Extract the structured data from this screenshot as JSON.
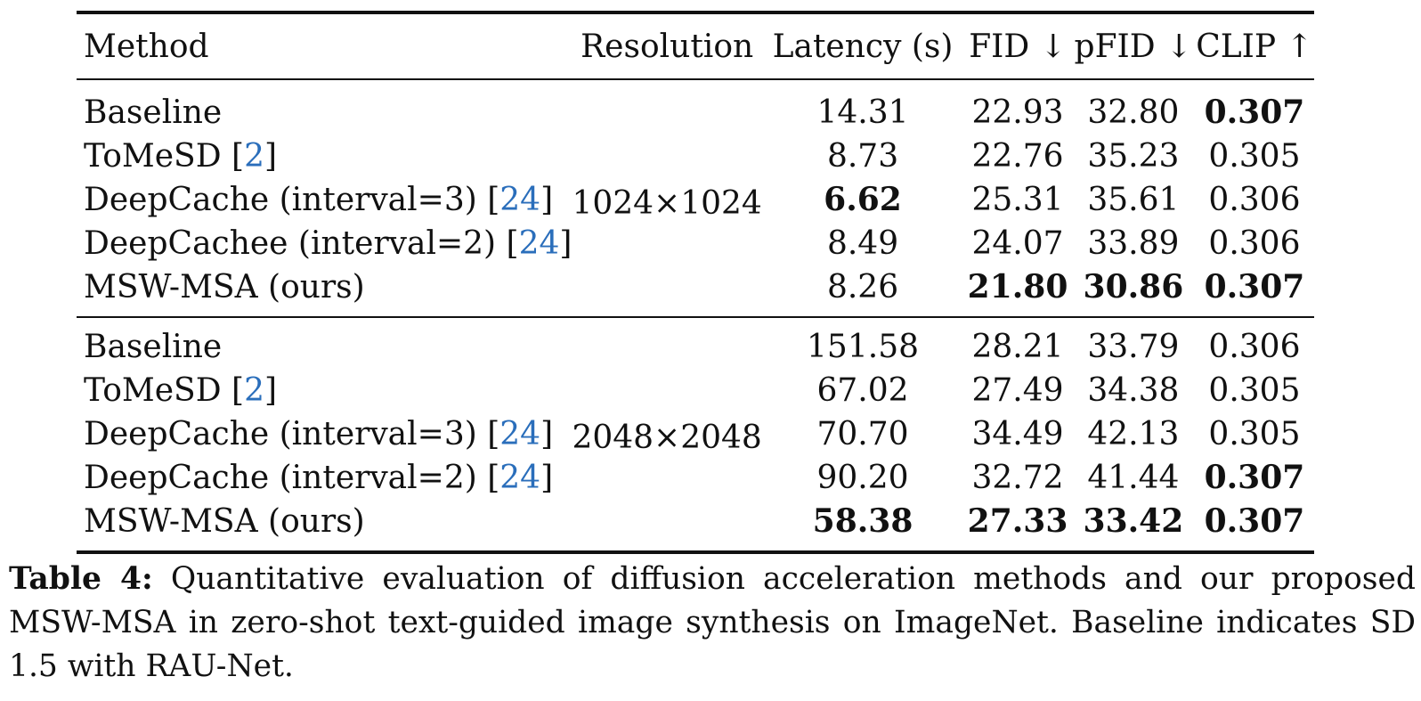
{
  "table": {
    "headers": {
      "method": "Method",
      "resolution": "Resolution",
      "latency": "Latency (s)",
      "fid": "FID ↓",
      "pfid": "pFID ↓",
      "clip": "CLIP ↑"
    },
    "groups": [
      {
        "resolution": "1024×1024",
        "rows": [
          {
            "method": "Baseline",
            "cite": "",
            "latency": "14.31",
            "fid": "22.93",
            "pfid": "32.80",
            "clip": "0.307"
          },
          {
            "method": "ToMeSD",
            "cite": "2",
            "latency": "8.73",
            "fid": "22.76",
            "pfid": "35.23",
            "clip": "0.305"
          },
          {
            "method": "DeepCache (interval=3)",
            "cite": "24",
            "latency": "6.62",
            "fid": "25.31",
            "pfid": "35.61",
            "clip": "0.306"
          },
          {
            "method": "DeepCachee (interval=2)",
            "cite": "24",
            "latency": "8.49",
            "fid": "24.07",
            "pfid": "33.89",
            "clip": "0.306"
          },
          {
            "method": "MSW-MSA (ours)",
            "cite": "",
            "latency": "8.26",
            "fid": "21.80",
            "pfid": "30.86",
            "clip": "0.307"
          }
        ]
      },
      {
        "resolution": "2048×2048",
        "rows": [
          {
            "method": "Baseline",
            "cite": "",
            "latency": "151.58",
            "fid": "28.21",
            "pfid": "33.79",
            "clip": "0.306"
          },
          {
            "method": "ToMeSD",
            "cite": "2",
            "latency": "67.02",
            "fid": "27.49",
            "pfid": "34.38",
            "clip": "0.305"
          },
          {
            "method": "DeepCache (interval=3)",
            "cite": "24",
            "latency": "70.70",
            "fid": "34.49",
            "pfid": "42.13",
            "clip": "0.305"
          },
          {
            "method": "DeepCache (interval=2)",
            "cite": "24",
            "latency": "90.20",
            "fid": "32.72",
            "pfid": "41.44",
            "clip": "0.307"
          },
          {
            "method": "MSW-MSA (ours)",
            "cite": "",
            "latency": "58.38",
            "fid": "27.33",
            "pfid": "33.42",
            "clip": "0.307"
          }
        ]
      }
    ]
  },
  "caption": {
    "label": "Table 4:",
    "text": "Quantitative evaluation of diffusion acceleration methods and our proposed MSW-MSA in zero-shot text-guided image synthesis on ImageNet. Baseline indicates SD 1.5 with RAU-Net."
  }
}
